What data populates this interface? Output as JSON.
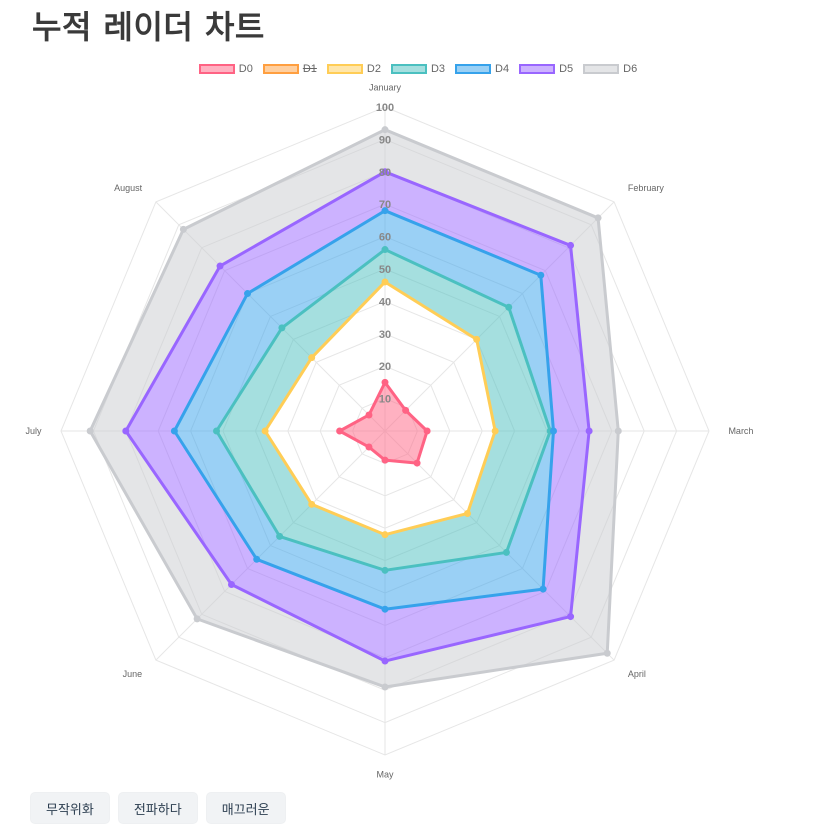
{
  "page": {
    "title": "누적 레이더 차트"
  },
  "buttons": [
    {
      "label": "무작위화"
    },
    {
      "label": "전파하다"
    },
    {
      "label": "매끄러운"
    }
  ],
  "chart_data": {
    "type": "radar",
    "stacked": true,
    "categories": [
      "January",
      "February",
      "March",
      "April",
      "May",
      "June",
      "July",
      "August"
    ],
    "ticks": [
      "10",
      "20",
      "30",
      "40",
      "50",
      "60",
      "70",
      "80",
      "90",
      "100"
    ],
    "rlim": [
      0,
      100
    ],
    "grid": true,
    "legend_position": "top",
    "series": [
      {
        "name": "D0",
        "cumulative": [
          15,
          9,
          13,
          14,
          9,
          7,
          14,
          7
        ],
        "border": "#ff6384",
        "fill": "rgba(255,99,132,0.5)",
        "fill_enabled": true,
        "hidden": false
      },
      {
        "name": "D1",
        "cumulative": [
          15,
          9,
          13,
          14,
          9,
          7,
          14,
          7
        ],
        "border": "#ff9f40",
        "fill": "rgba(255,159,64,0.5)",
        "fill_enabled": true,
        "hidden": true
      },
      {
        "name": "D2",
        "cumulative": [
          46,
          40,
          34,
          36,
          32,
          32,
          37,
          32
        ],
        "border": "#ffcd56",
        "fill": "rgba(255,205,86,0.5)",
        "fill_enabled": false,
        "hidden": false
      },
      {
        "name": "D3",
        "cumulative": [
          56,
          54,
          51,
          53,
          43,
          46,
          52,
          45
        ],
        "border": "#4bc0c0",
        "fill": "rgba(75,192,192,0.5)",
        "fill_enabled": true,
        "hidden": false
      },
      {
        "name": "D4",
        "cumulative": [
          68,
          68,
          52,
          69,
          55,
          56,
          65,
          60
        ],
        "border": "#36a2eb",
        "fill": "rgba(54,162,235,0.5)",
        "fill_enabled": true,
        "hidden": false
      },
      {
        "name": "D5",
        "cumulative": [
          80,
          81,
          63,
          81,
          71,
          67,
          80,
          72
        ],
        "border": "#9966ff",
        "fill": "rgba(153,102,255,0.5)",
        "fill_enabled": true,
        "hidden": false
      },
      {
        "name": "D6",
        "cumulative": [
          93,
          93,
          72,
          97,
          79,
          82,
          91,
          88
        ],
        "border": "#c9cbcf",
        "fill": "rgba(201,203,207,0.5)",
        "fill_enabled": true,
        "hidden": false
      }
    ]
  }
}
